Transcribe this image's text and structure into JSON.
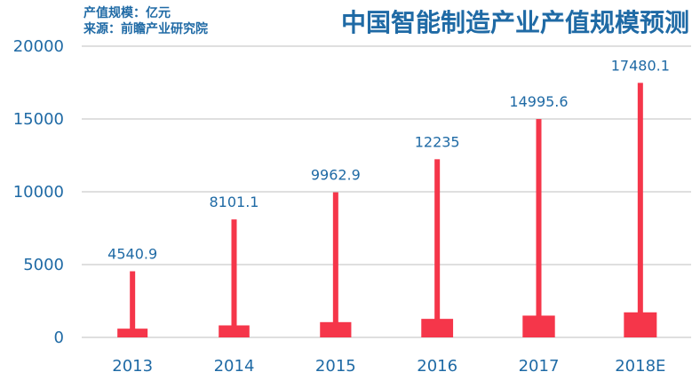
{
  "meta": {
    "unit_line": "产值规模：亿元",
    "source_line": "来源：前瞻产业研究院"
  },
  "chart_data": {
    "type": "bar",
    "title": "中国智能制造产业产值规模预测",
    "xlabel": "",
    "ylabel": "",
    "ylim": [
      0,
      20000
    ],
    "yticks": [
      0,
      5000,
      10000,
      15000,
      20000
    ],
    "grid": true,
    "categories": [
      "2013",
      "2014",
      "2015",
      "2016",
      "2017",
      "2018E"
    ],
    "values": [
      4540.9,
      8101.1,
      9962.9,
      12235,
      14995.6,
      17480.1
    ],
    "value_labels": [
      "4540.9",
      "8101.1",
      "9962.9",
      "12235",
      "14995.6",
      "17480.1"
    ],
    "colors": {
      "bar": "#f5364a",
      "text": "#1f6aa5",
      "grid": "#bfbfbf",
      "axis": "#bfbfbf"
    }
  }
}
